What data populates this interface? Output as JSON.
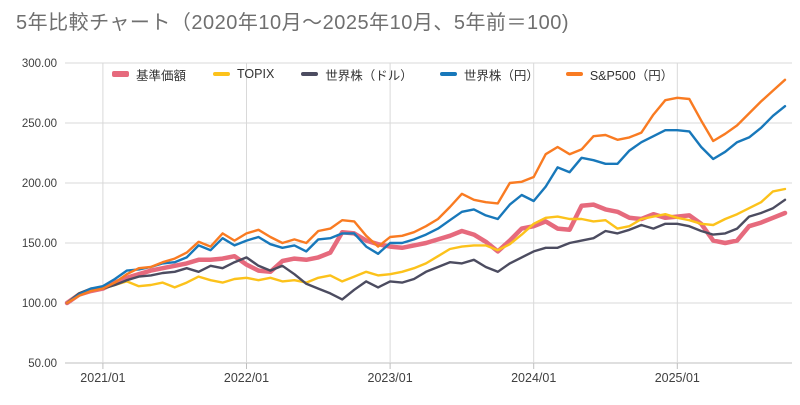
{
  "title": "5年比較チャート（2020年10月～2025年10月、5年前＝100)",
  "colors": {
    "grid": "#d9d9d9",
    "axis": "#bfbfbf",
    "tick_text": "#404040",
    "title_text": "#6f6f6f"
  },
  "chart_data": {
    "type": "line",
    "title": "5年比較チャート（2020年10月～2025年10月、5年前＝100)",
    "xlabel": "",
    "ylabel": "",
    "ylim": [
      50,
      300
    ],
    "grid": true,
    "legend_position": "top",
    "y_ticks": [
      {
        "value": 300,
        "label": "300.00"
      },
      {
        "value": 250,
        "label": "250.00"
      },
      {
        "value": 200,
        "label": "200.00"
      },
      {
        "value": 150,
        "label": "150.00"
      },
      {
        "value": 100,
        "label": "100.00"
      },
      {
        "value": 50,
        "label": "50.00"
      }
    ],
    "x_ticks": [
      {
        "label": "2021/01",
        "month_index": 3
      },
      {
        "label": "2022/01",
        "month_index": 15
      },
      {
        "label": "2023/01",
        "month_index": 27
      },
      {
        "label": "2024/01",
        "month_index": 39
      },
      {
        "label": "2025/01",
        "month_index": 51
      }
    ],
    "months": [
      "2020/10",
      "2020/11",
      "2020/12",
      "2021/01",
      "2021/02",
      "2021/03",
      "2021/04",
      "2021/05",
      "2021/06",
      "2021/07",
      "2021/08",
      "2021/09",
      "2021/10",
      "2021/11",
      "2021/12",
      "2022/01",
      "2022/02",
      "2022/03",
      "2022/04",
      "2022/05",
      "2022/06",
      "2022/07",
      "2022/08",
      "2022/09",
      "2022/10",
      "2022/11",
      "2022/12",
      "2023/01",
      "2023/02",
      "2023/03",
      "2023/04",
      "2023/05",
      "2023/06",
      "2023/07",
      "2023/08",
      "2023/09",
      "2023/10",
      "2023/11",
      "2023/12",
      "2024/01",
      "2024/02",
      "2024/03",
      "2024/04",
      "2024/05",
      "2024/06",
      "2024/07",
      "2024/08",
      "2024/09",
      "2024/10",
      "2024/11",
      "2024/12",
      "2025/01",
      "2025/02",
      "2025/03",
      "2025/04",
      "2025/05",
      "2025/06",
      "2025/07",
      "2025/08",
      "2025/09",
      "2025/10"
    ],
    "series": [
      {
        "name": "基準価額",
        "color": "#e66a7d",
        "stroke_width": 4.5,
        "values": [
          100,
          107,
          110,
          112,
          117,
          121,
          124,
          127,
          129,
          131,
          133,
          136,
          136,
          137,
          139,
          132,
          127,
          126,
          135,
          137,
          136,
          138,
          142,
          159,
          158,
          152,
          149,
          147,
          146,
          148,
          150,
          153,
          156,
          160,
          157,
          151,
          143,
          152,
          162,
          164,
          168,
          162,
          161,
          181,
          182,
          178,
          176,
          171,
          170,
          174,
          171,
          172,
          173,
          166,
          152,
          150,
          152,
          164,
          167,
          171,
          175
        ]
      },
      {
        "name": "TOPIX",
        "color": "#fcc21b",
        "stroke_width": 2.4,
        "values": [
          100,
          108,
          111,
          112,
          115,
          118,
          114,
          115,
          117,
          113,
          117,
          122,
          119,
          117,
          120,
          121,
          119,
          121,
          118,
          119,
          117,
          121,
          123,
          118,
          122,
          126,
          123,
          124,
          126,
          129,
          133,
          139,
          145,
          147,
          148,
          148,
          144,
          149,
          157,
          166,
          171,
          172,
          170,
          170,
          168,
          169,
          162,
          164,
          170,
          172,
          174,
          171,
          169,
          166,
          165,
          170,
          174,
          179,
          184,
          193,
          195
        ]
      },
      {
        "name": "世界株（ドル）",
        "color": "#4c4c60",
        "stroke_width": 2.4,
        "values": [
          100,
          108,
          112,
          112,
          115,
          119,
          122,
          123,
          125,
          126,
          129,
          126,
          131,
          129,
          134,
          138,
          131,
          127,
          131,
          124,
          116,
          112,
          108,
          103,
          111,
          118,
          113,
          118,
          117,
          120,
          126,
          130,
          134,
          133,
          136,
          130,
          126,
          133,
          138,
          143,
          146,
          146,
          150,
          152,
          154,
          160,
          158,
          161,
          165,
          162,
          166,
          166,
          164,
          160,
          157,
          158,
          162,
          172,
          175,
          179,
          186
        ]
      },
      {
        "name": "世界株（円）",
        "color": "#1878ba",
        "stroke_width": 2.4,
        "values": [
          100,
          107,
          112,
          114,
          120,
          127,
          128,
          130,
          133,
          134,
          138,
          148,
          144,
          154,
          148,
          152,
          155,
          149,
          146,
          148,
          143,
          153,
          154,
          158,
          158,
          147,
          141,
          150,
          150,
          153,
          157,
          162,
          169,
          176,
          178,
          173,
          170,
          182,
          190,
          185,
          197,
          213,
          209,
          221,
          219,
          216,
          216,
          227,
          234,
          239,
          244,
          244,
          243,
          230,
          220,
          226,
          234,
          238,
          246,
          256,
          264
        ]
      },
      {
        "name": "S&P500（円）",
        "color": "#f97b22",
        "stroke_width": 2.4,
        "values": [
          100,
          106,
          110,
          112,
          117,
          124,
          129,
          130,
          134,
          137,
          142,
          151,
          147,
          158,
          152,
          158,
          161,
          155,
          150,
          153,
          150,
          160,
          162,
          169,
          168,
          156,
          147,
          155,
          156,
          159,
          164,
          170,
          180,
          191,
          186,
          184,
          183,
          200,
          201,
          205,
          224,
          230,
          224,
          228,
          239,
          240,
          236,
          238,
          242,
          257,
          269,
          271,
          270,
          252,
          235,
          241,
          248,
          258,
          268,
          277,
          286
        ]
      }
    ]
  }
}
